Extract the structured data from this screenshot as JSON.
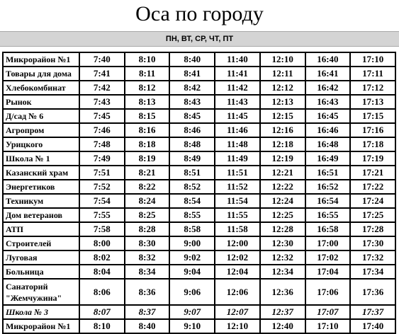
{
  "title": "Оса по городу",
  "days": "ПН, ВТ, СР, ЧТ, ПТ",
  "rows": [
    {
      "stop": "Микрорайон №1",
      "times": [
        "7:40",
        "8:10",
        "8:40",
        "11:40",
        "12:10",
        "16:40",
        "17:10"
      ]
    },
    {
      "stop": "Товары для дома",
      "times": [
        "7:41",
        "8:11",
        "8:41",
        "11:41",
        "12:11",
        "16:41",
        "17:11"
      ]
    },
    {
      "stop": "Хлебокомбинат",
      "times": [
        "7:42",
        "8:12",
        "8:42",
        "11:42",
        "12:12",
        "16:42",
        "17:12"
      ]
    },
    {
      "stop": "Рынок",
      "times": [
        "7:43",
        "8:13",
        "8:43",
        "11:43",
        "12:13",
        "16:43",
        "17:13"
      ]
    },
    {
      "stop": "Д/сад № 6",
      "times": [
        "7:45",
        "8:15",
        "8:45",
        "11:45",
        "12:15",
        "16:45",
        "17:15"
      ]
    },
    {
      "stop": "Агропром",
      "times": [
        "7:46",
        "8:16",
        "8:46",
        "11:46",
        "12:16",
        "16:46",
        "17:16"
      ]
    },
    {
      "stop": "Урицкого",
      "times": [
        "7:48",
        "8:18",
        "8:48",
        "11:48",
        "12:18",
        "16:48",
        "17:18"
      ]
    },
    {
      "stop": "Школа № 1",
      "times": [
        "7:49",
        "8:19",
        "8:49",
        "11:49",
        "12:19",
        "16:49",
        "17:19"
      ]
    },
    {
      "stop": "Казанский храм",
      "times": [
        "7:51",
        "8:21",
        "8:51",
        "11:51",
        "12:21",
        "16:51",
        "17:21"
      ]
    },
    {
      "stop": "Энергетиков",
      "times": [
        "7:52",
        "8:22",
        "8:52",
        "11:52",
        "12:22",
        "16:52",
        "17:22"
      ]
    },
    {
      "stop": "Техникум",
      "times": [
        "7:54",
        "8:24",
        "8:54",
        "11:54",
        "12:24",
        "16:54",
        "17:24"
      ]
    },
    {
      "stop": "Дом ветеранов",
      "times": [
        "7:55",
        "8:25",
        "8:55",
        "11:55",
        "12:25",
        "16:55",
        "17:25"
      ]
    },
    {
      "stop": "АТП",
      "times": [
        "7:58",
        "8:28",
        "8:58",
        "11:58",
        "12:28",
        "16:58",
        "17:28"
      ]
    },
    {
      "stop": "Строителей",
      "times": [
        "8:00",
        "8:30",
        "9:00",
        "12:00",
        "12:30",
        "17:00",
        "17:30"
      ]
    },
    {
      "stop": "Луговая",
      "times": [
        "8:02",
        "8:32",
        "9:02",
        "12:02",
        "12:32",
        "17:02",
        "17:32"
      ]
    },
    {
      "stop": "Больница",
      "times": [
        "8:04",
        "8:34",
        "9:04",
        "12:04",
        "12:34",
        "17:04",
        "17:34"
      ]
    },
    {
      "stop": "Санаторий \"Жемчужина\"",
      "times": [
        "8:06",
        "8:36",
        "9:06",
        "12:06",
        "12:36",
        "17:06",
        "17:36"
      ]
    },
    {
      "stop": "Школа № 3",
      "times": [
        "8:07",
        "8:37",
        "9:07",
        "12:07",
        "12:37",
        "17:07",
        "17:37"
      ]
    },
    {
      "stop": "Микрорайон №1",
      "times": [
        "8:10",
        "8:40",
        "9:10",
        "12:10",
        "12:40",
        "17:10",
        "17:40"
      ]
    }
  ]
}
